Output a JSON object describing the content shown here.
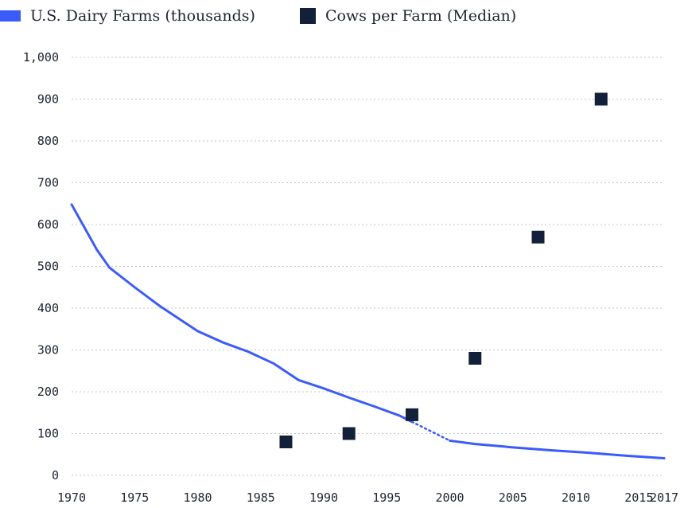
{
  "legend": {
    "farms_label": "U.S. Dairy Farms (thousands)",
    "cows_label": "Cows per Farm (Median)"
  },
  "colors": {
    "farms": "#3b5bfa",
    "cows": "#13203a",
    "grid": "#bfc5cc",
    "text": "#1d2430"
  },
  "chart_data": {
    "type": "line",
    "title": "",
    "xlabel": "",
    "ylabel": "",
    "xlim": [
      1970,
      2017
    ],
    "ylim": [
      0,
      1000
    ],
    "x_ticks": [
      "1970",
      "1975",
      "1980",
      "1985",
      "1990",
      "1995",
      "2000",
      "2005",
      "2010",
      "2015",
      "2017"
    ],
    "y_ticks": [
      "0",
      "100",
      "200",
      "300",
      "400",
      "500",
      "600",
      "700",
      "800",
      "900",
      "1,000"
    ],
    "grid": true,
    "legend_position": "top-left",
    "series": [
      {
        "name": "U.S. Dairy Farms (thousands)",
        "type": "line",
        "x": [
          1970,
          1972,
          1973,
          1975,
          1977,
          1979,
          1980,
          1982,
          1984,
          1986,
          1988,
          1990,
          1992,
          1994,
          1996,
          1997
        ],
        "values": [
          648,
          540,
          497,
          450,
          405,
          365,
          345,
          318,
          296,
          268,
          228,
          208,
          186,
          165,
          143,
          128
        ],
        "note_gap": "dotted segment between 1997 and 2000"
      },
      {
        "name": "U.S. Dairy Farms (thousands) (estimated gap)",
        "type": "dotted",
        "x": [
          1997,
          2000
        ],
        "values": [
          128,
          83
        ]
      },
      {
        "name": "U.S. Dairy Farms (thousands) (continued)",
        "type": "line",
        "x": [
          2000,
          2002,
          2005,
          2008,
          2011,
          2014,
          2017
        ],
        "values": [
          83,
          75,
          67,
          60,
          54,
          47,
          41
        ]
      },
      {
        "name": "Cows per Farm (Median)",
        "type": "scatter",
        "x": [
          1987,
          1992,
          1997,
          2002,
          2007,
          2012
        ],
        "values": [
          80,
          100,
          145,
          280,
          570,
          900
        ]
      }
    ]
  }
}
